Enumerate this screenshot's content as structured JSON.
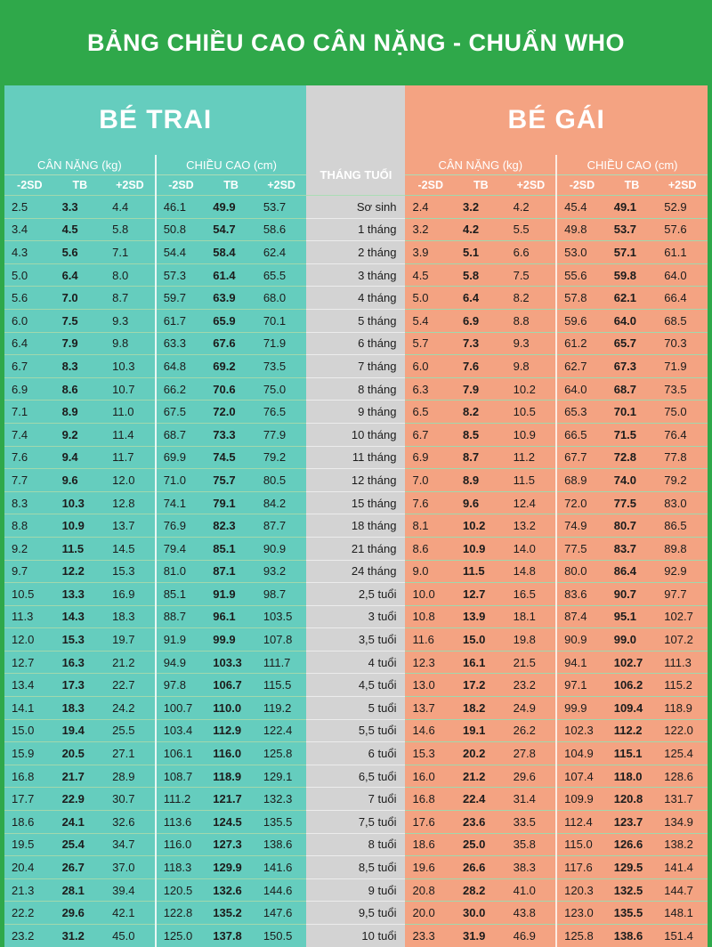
{
  "title": "BẢNG CHIỀU CAO CÂN NẶNG - CHUẨN WHO",
  "boys_label": "BÉ TRAI",
  "girls_label": "BÉ GÁI",
  "weight_header": "CÂN NẶNG (kg)",
  "height_header": "CHIỀU CAO (cm)",
  "age_header": "THÁNG TUỔI",
  "sub_headers": [
    "-2SD",
    "TB",
    "+2SD"
  ],
  "rows": [
    {
      "age": "Sơ sinh",
      "boys": [
        "2.5",
        "3.3",
        "4.4",
        "46.1",
        "49.9",
        "53.7"
      ],
      "girls": [
        "2.4",
        "3.2",
        "4.2",
        "45.4",
        "49.1",
        "52.9"
      ]
    },
    {
      "age": "1 tháng",
      "boys": [
        "3.4",
        "4.5",
        "5.8",
        "50.8",
        "54.7",
        "58.6"
      ],
      "girls": [
        "3.2",
        "4.2",
        "5.5",
        "49.8",
        "53.7",
        "57.6"
      ]
    },
    {
      "age": "2 tháng",
      "boys": [
        "4.3",
        "5.6",
        "7.1",
        "54.4",
        "58.4",
        "62.4"
      ],
      "girls": [
        "3.9",
        "5.1",
        "6.6",
        "53.0",
        "57.1",
        "61.1"
      ]
    },
    {
      "age": "3 tháng",
      "boys": [
        "5.0",
        "6.4",
        "8.0",
        "57.3",
        "61.4",
        "65.5"
      ],
      "girls": [
        "4.5",
        "5.8",
        "7.5",
        "55.6",
        "59.8",
        "64.0"
      ]
    },
    {
      "age": "4 tháng",
      "boys": [
        "5.6",
        "7.0",
        "8.7",
        "59.7",
        "63.9",
        "68.0"
      ],
      "girls": [
        "5.0",
        "6.4",
        "8.2",
        "57.8",
        "62.1",
        "66.4"
      ]
    },
    {
      "age": "5 tháng",
      "boys": [
        "6.0",
        "7.5",
        "9.3",
        "61.7",
        "65.9",
        "70.1"
      ],
      "girls": [
        "5.4",
        "6.9",
        "8.8",
        "59.6",
        "64.0",
        "68.5"
      ]
    },
    {
      "age": "6 tháng",
      "boys": [
        "6.4",
        "7.9",
        "9.8",
        "63.3",
        "67.6",
        "71.9"
      ],
      "girls": [
        "5.7",
        "7.3",
        "9.3",
        "61.2",
        "65.7",
        "70.3"
      ]
    },
    {
      "age": "7 tháng",
      "boys": [
        "6.7",
        "8.3",
        "10.3",
        "64.8",
        "69.2",
        "73.5"
      ],
      "girls": [
        "6.0",
        "7.6",
        "9.8",
        "62.7",
        "67.3",
        "71.9"
      ]
    },
    {
      "age": "8 tháng",
      "boys": [
        "6.9",
        "8.6",
        "10.7",
        "66.2",
        "70.6",
        "75.0"
      ],
      "girls": [
        "6.3",
        "7.9",
        "10.2",
        "64.0",
        "68.7",
        "73.5"
      ]
    },
    {
      "age": "9 tháng",
      "boys": [
        "7.1",
        "8.9",
        "11.0",
        "67.5",
        "72.0",
        "76.5"
      ],
      "girls": [
        "6.5",
        "8.2",
        "10.5",
        "65.3",
        "70.1",
        "75.0"
      ]
    },
    {
      "age": "10 tháng",
      "boys": [
        "7.4",
        "9.2",
        "11.4",
        "68.7",
        "73.3",
        "77.9"
      ],
      "girls": [
        "6.7",
        "8.5",
        "10.9",
        "66.5",
        "71.5",
        "76.4"
      ]
    },
    {
      "age": "11 tháng",
      "boys": [
        "7.6",
        "9.4",
        "11.7",
        "69.9",
        "74.5",
        "79.2"
      ],
      "girls": [
        "6.9",
        "8.7",
        "11.2",
        "67.7",
        "72.8",
        "77.8"
      ]
    },
    {
      "age": "12 tháng",
      "boys": [
        "7.7",
        "9.6",
        "12.0",
        "71.0",
        "75.7",
        "80.5"
      ],
      "girls": [
        "7.0",
        "8.9",
        "11.5",
        "68.9",
        "74.0",
        "79.2"
      ]
    },
    {
      "age": "15 tháng",
      "boys": [
        "8.3",
        "10.3",
        "12.8",
        "74.1",
        "79.1",
        "84.2"
      ],
      "girls": [
        "7.6",
        "9.6",
        "12.4",
        "72.0",
        "77.5",
        "83.0"
      ]
    },
    {
      "age": "18 tháng",
      "boys": [
        "8.8",
        "10.9",
        "13.7",
        "76.9",
        "82.3",
        "87.7"
      ],
      "girls": [
        "8.1",
        "10.2",
        "13.2",
        "74.9",
        "80.7",
        "86.5"
      ]
    },
    {
      "age": "21 tháng",
      "boys": [
        "9.2",
        "11.5",
        "14.5",
        "79.4",
        "85.1",
        "90.9"
      ],
      "girls": [
        "8.6",
        "10.9",
        "14.0",
        "77.5",
        "83.7",
        "89.8"
      ]
    },
    {
      "age": "24 tháng",
      "boys": [
        "9.7",
        "12.2",
        "15.3",
        "81.0",
        "87.1",
        "93.2"
      ],
      "girls": [
        "9.0",
        "11.5",
        "14.8",
        "80.0",
        "86.4",
        "92.9"
      ]
    },
    {
      "age": "2,5 tuổi",
      "boys": [
        "10.5",
        "13.3",
        "16.9",
        "85.1",
        "91.9",
        "98.7"
      ],
      "girls": [
        "10.0",
        "12.7",
        "16.5",
        "83.6",
        "90.7",
        "97.7"
      ]
    },
    {
      "age": "3 tuổi",
      "boys": [
        "11.3",
        "14.3",
        "18.3",
        "88.7",
        "96.1",
        "103.5"
      ],
      "girls": [
        "10.8",
        "13.9",
        "18.1",
        "87.4",
        "95.1",
        "102.7"
      ]
    },
    {
      "age": "3,5 tuổi",
      "boys": [
        "12.0",
        "15.3",
        "19.7",
        "91.9",
        "99.9",
        "107.8"
      ],
      "girls": [
        "11.6",
        "15.0",
        "19.8",
        "90.9",
        "99.0",
        "107.2"
      ]
    },
    {
      "age": "4 tuổi",
      "boys": [
        "12.7",
        "16.3",
        "21.2",
        "94.9",
        "103.3",
        "111.7"
      ],
      "girls": [
        "12.3",
        "16.1",
        "21.5",
        "94.1",
        "102.7",
        "111.3"
      ]
    },
    {
      "age": "4,5 tuổi",
      "boys": [
        "13.4",
        "17.3",
        "22.7",
        "97.8",
        "106.7",
        "115.5"
      ],
      "girls": [
        "13.0",
        "17.2",
        "23.2",
        "97.1",
        "106.2",
        "115.2"
      ]
    },
    {
      "age": "5 tuổi",
      "boys": [
        "14.1",
        "18.3",
        "24.2",
        "100.7",
        "110.0",
        "119.2"
      ],
      "girls": [
        "13.7",
        "18.2",
        "24.9",
        "99.9",
        "109.4",
        "118.9"
      ]
    },
    {
      "age": "5,5 tuổi",
      "boys": [
        "15.0",
        "19.4",
        "25.5",
        "103.4",
        "112.9",
        "122.4"
      ],
      "girls": [
        "14.6",
        "19.1",
        "26.2",
        "102.3",
        "112.2",
        "122.0"
      ]
    },
    {
      "age": "6 tuổi",
      "boys": [
        "15.9",
        "20.5",
        "27.1",
        "106.1",
        "116.0",
        "125.8"
      ],
      "girls": [
        "15.3",
        "20.2",
        "27.8",
        "104.9",
        "115.1",
        "125.4"
      ]
    },
    {
      "age": "6,5 tuổi",
      "boys": [
        "16.8",
        "21.7",
        "28.9",
        "108.7",
        "118.9",
        "129.1"
      ],
      "girls": [
        "16.0",
        "21.2",
        "29.6",
        "107.4",
        "118.0",
        "128.6"
      ]
    },
    {
      "age": "7 tuổi",
      "boys": [
        "17.7",
        "22.9",
        "30.7",
        "111.2",
        "121.7",
        "132.3"
      ],
      "girls": [
        "16.8",
        "22.4",
        "31.4",
        "109.9",
        "120.8",
        "131.7"
      ]
    },
    {
      "age": "7,5 tuổi",
      "boys": [
        "18.6",
        "24.1",
        "32.6",
        "113.6",
        "124.5",
        "135.5"
      ],
      "girls": [
        "17.6",
        "23.6",
        "33.5",
        "112.4",
        "123.7",
        "134.9"
      ]
    },
    {
      "age": "8 tuổi",
      "boys": [
        "19.5",
        "25.4",
        "34.7",
        "116.0",
        "127.3",
        "138.6"
      ],
      "girls": [
        "18.6",
        "25.0",
        "35.8",
        "115.0",
        "126.6",
        "138.2"
      ]
    },
    {
      "age": "8,5 tuổi",
      "boys": [
        "20.4",
        "26.7",
        "37.0",
        "118.3",
        "129.9",
        "141.6"
      ],
      "girls": [
        "19.6",
        "26.6",
        "38.3",
        "117.6",
        "129.5",
        "141.4"
      ]
    },
    {
      "age": "9 tuổi",
      "boys": [
        "21.3",
        "28.1",
        "39.4",
        "120.5",
        "132.6",
        "144.6"
      ],
      "girls": [
        "20.8",
        "28.2",
        "41.0",
        "120.3",
        "132.5",
        "144.7"
      ]
    },
    {
      "age": "9,5 tuổi",
      "boys": [
        "22.2",
        "29.6",
        "42.1",
        "122.8",
        "135.2",
        "147.6"
      ],
      "girls": [
        "20.0",
        "30.0",
        "43.8",
        "123.0",
        "135.5",
        "148.1"
      ]
    },
    {
      "age": "10 tuổi",
      "boys": [
        "23.2",
        "31.2",
        "45.0",
        "125.0",
        "137.8",
        "150.5"
      ],
      "girls": [
        "23.3",
        "31.9",
        "46.9",
        "125.8",
        "138.6",
        "151.4"
      ]
    }
  ],
  "colors": {
    "banner": "#2fa84a",
    "boys": "#65cdbe",
    "girls": "#f4a382",
    "age_column": "#d3d3d3"
  }
}
